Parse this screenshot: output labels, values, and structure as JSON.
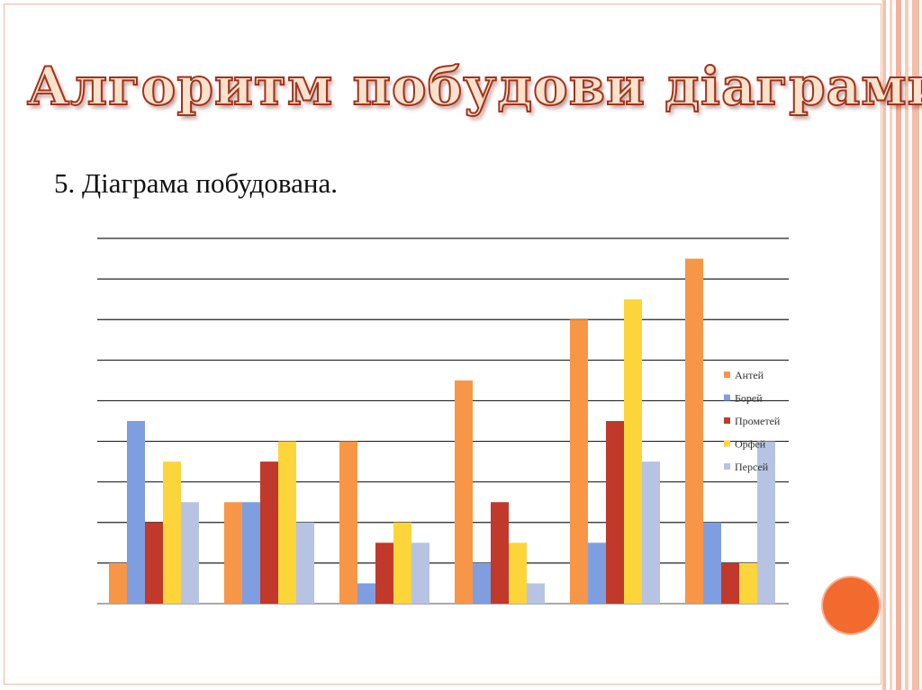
{
  "slide": {
    "title": "Алгоритм побудови діаграми",
    "step_text": "5. Діаграма побудована."
  },
  "chart_data": {
    "type": "bar",
    "categories": [
      "",
      "",
      "",
      "",
      "",
      ""
    ],
    "series": [
      {
        "name": "Антей",
        "color": "#f79646",
        "values": [
          1,
          2.5,
          4,
          5.5,
          7,
          8.5
        ]
      },
      {
        "name": "Борей",
        "color": "#7f9ee0",
        "values": [
          4.5,
          2.5,
          0.5,
          1,
          1.5,
          2
        ]
      },
      {
        "name": "Прометей",
        "color": "#c0392b",
        "values": [
          2,
          3.5,
          1.5,
          2.5,
          4.5,
          1
        ]
      },
      {
        "name": "Орфей",
        "color": "#fcd53b",
        "values": [
          3.5,
          4,
          2,
          1.5,
          7.5,
          1
        ]
      },
      {
        "name": "Персей",
        "color": "#b6c3e2",
        "values": [
          2.5,
          2,
          1.5,
          0.5,
          3.5,
          4
        ]
      }
    ],
    "ylim": [
      0,
      9
    ],
    "grid": true,
    "legend": "right"
  },
  "colors": {
    "accent": "#f26a2d",
    "border": "#f2b8a2",
    "title_fill": "#fbe2cc",
    "title_stroke": "#a0331c"
  }
}
